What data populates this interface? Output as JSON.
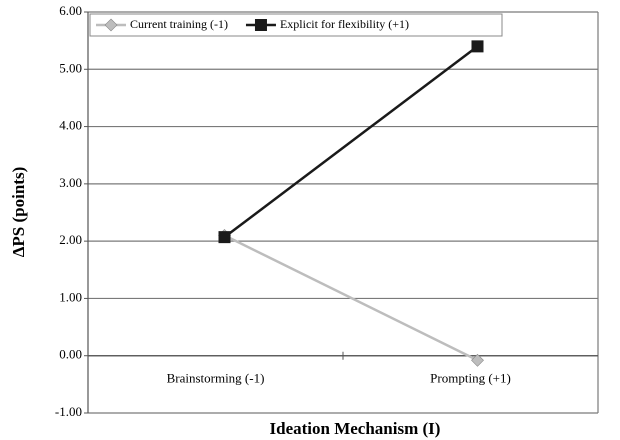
{
  "chart_data": {
    "type": "line",
    "xlabel": "Ideation Mechanism (I)",
    "ylabel": "ΔPS (points)",
    "categories": [
      "Brainstorming (-1)",
      "Prompting (+1)"
    ],
    "series": [
      {
        "name": "Current training (-1)",
        "color": "#bdbdbd",
        "marker": "diamond",
        "values": [
          2.1,
          -0.08
        ]
      },
      {
        "name": "Explicit for flexibility (+1)",
        "color": "#1a1a1a",
        "marker": "square",
        "values": [
          2.07,
          5.4
        ]
      }
    ],
    "ylim": [
      -1,
      6
    ],
    "yticks": [
      {
        "value": -1,
        "label": "-1.00"
      },
      {
        "value": 0,
        "label": "0.00"
      },
      {
        "value": 1,
        "label": "1.00"
      },
      {
        "value": 2,
        "label": "2.00"
      },
      {
        "value": 3,
        "label": "3.00"
      },
      {
        "value": 4,
        "label": "4.00"
      },
      {
        "value": 5,
        "label": "5.00"
      },
      {
        "value": 6,
        "label": "6.00"
      }
    ],
    "grid": true,
    "legend": "top-left"
  }
}
